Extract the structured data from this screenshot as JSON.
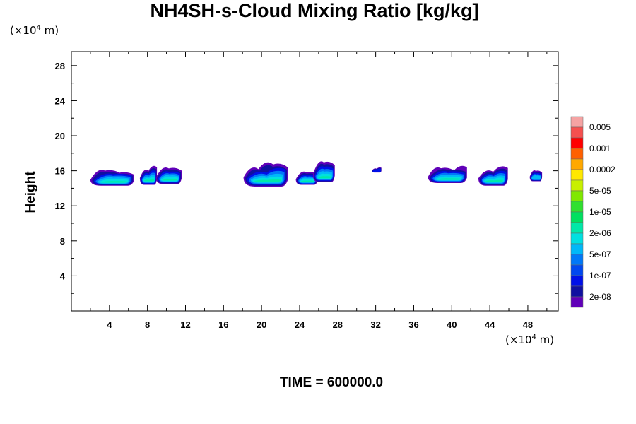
{
  "title": "NH4SH-s-Cloud Mixing Ratio [kg/kg]",
  "y_unit": "(×10",
  "y_unit_exp": "4",
  "y_unit_tail": " m)",
  "x_unit": "(×10",
  "x_unit_exp": "4",
  "x_unit_tail": " m)",
  "ylabel": "Height",
  "time_label": "TIME = 600000.0",
  "chart_data": {
    "type": "heatmap",
    "title": "NH4SH-s-Cloud Mixing Ratio [kg/kg]",
    "ylabel": "Height",
    "xlabel": "",
    "xlim": [
      0,
      51.2
    ],
    "ylim": [
      0,
      29.6
    ],
    "x_ticks": [
      "4",
      "8",
      "12",
      "16",
      "20",
      "24",
      "28",
      "32",
      "36",
      "40",
      "44",
      "48"
    ],
    "x_tick_values": [
      4,
      8,
      12,
      16,
      20,
      24,
      28,
      32,
      36,
      40,
      44,
      48
    ],
    "y_ticks": [
      "4",
      "8",
      "12",
      "16",
      "20",
      "24",
      "28"
    ],
    "y_tick_values": [
      4,
      8,
      12,
      16,
      20,
      24,
      28
    ],
    "colorbar": {
      "labels": [
        "0.005",
        "0.001",
        "0.0002",
        "5e-05",
        "1e-05",
        "2e-06",
        "5e-07",
        "1e-07",
        "2e-08"
      ],
      "colors": [
        "#f5a3a3",
        "#f5504f",
        "#ff0000",
        "#ff6000",
        "#ffa800",
        "#ffe800",
        "#c8f000",
        "#80e800",
        "#30e030",
        "#00e060",
        "#00e8a8",
        "#00e0e0",
        "#00b8f8",
        "#0078f8",
        "#0048f0",
        "#0010e8",
        "#1010a0",
        "#6000b8"
      ]
    },
    "clouds": [
      {
        "x": [
          2.0,
          6.6
        ],
        "y": [
          14.3,
          16.2
        ],
        "level": 0.55
      },
      {
        "x": [
          7.2,
          9.0
        ],
        "y": [
          14.4,
          16.6
        ],
        "level": 0.5
      },
      {
        "x": [
          8.9,
          11.6
        ],
        "y": [
          14.5,
          16.6
        ],
        "level": 0.45
      },
      {
        "x": [
          18.1,
          22.8
        ],
        "y": [
          14.2,
          17.2
        ],
        "level": 0.8
      },
      {
        "x": [
          23.6,
          25.9
        ],
        "y": [
          14.4,
          16.2
        ],
        "level": 0.45
      },
      {
        "x": [
          25.4,
          27.7
        ],
        "y": [
          14.7,
          17.2
        ],
        "level": 0.5
      },
      {
        "x": [
          31.6,
          32.6
        ],
        "y": [
          15.8,
          16.4
        ],
        "level": 0.0
      },
      {
        "x": [
          37.5,
          41.6
        ],
        "y": [
          14.6,
          16.6
        ],
        "level": 0.6
      },
      {
        "x": [
          42.8,
          45.9
        ],
        "y": [
          14.3,
          16.7
        ],
        "level": 0.55
      },
      {
        "x": [
          48.2,
          49.5
        ],
        "y": [
          14.8,
          16.3
        ],
        "level": 0.2
      }
    ]
  }
}
